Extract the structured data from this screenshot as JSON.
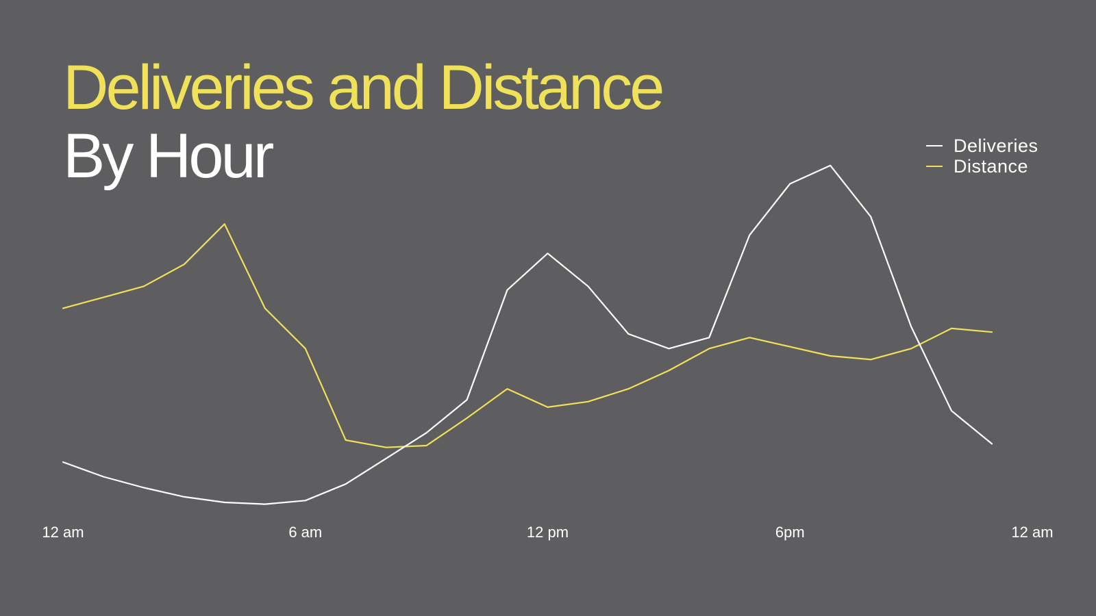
{
  "chart_data": {
    "type": "line",
    "title": "Deliveries and Distance",
    "subtitle": "By Hour",
    "x": [
      0,
      1,
      2,
      3,
      4,
      5,
      6,
      7,
      8,
      9,
      10,
      11,
      12,
      13,
      14,
      15,
      16,
      17,
      18,
      19,
      20,
      21,
      22,
      23
    ],
    "x_ticks": [
      {
        "value": 0,
        "label": "12 am"
      },
      {
        "value": 6,
        "label": "6 am"
      },
      {
        "value": 12,
        "label": "12 pm"
      },
      {
        "value": 18,
        "label": "6pm"
      },
      {
        "value": 24,
        "label": "12 am"
      }
    ],
    "xlim": [
      0,
      24
    ],
    "ylim": [
      0,
      100
    ],
    "xlabel": "",
    "ylabel": "",
    "grid": false,
    "y_axis_shown": false,
    "legend_position": "top-right",
    "series": [
      {
        "name": "Deliveries",
        "color": "#ffffff",
        "values": [
          14,
          10,
          7,
          4.5,
          3,
          2.5,
          3.5,
          8,
          15,
          22,
          31,
          61,
          71,
          62,
          49,
          45,
          48,
          76,
          90,
          95,
          81,
          51,
          28,
          19
        ]
      },
      {
        "name": "Distance",
        "color": "#f0e15a",
        "values": [
          56,
          59,
          62,
          68,
          79,
          56,
          45,
          20,
          18,
          18.5,
          26,
          34,
          29,
          30.5,
          34,
          39,
          45,
          48,
          45.5,
          43,
          42,
          45,
          50.5,
          49.5
        ]
      }
    ]
  }
}
